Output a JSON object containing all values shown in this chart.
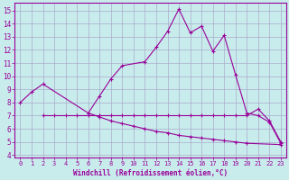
{
  "xlabel": "Windchill (Refroidissement éolien,°C)",
  "background_color": "#c8ecec",
  "grid_color": "#aaaacc",
  "line_color": "#990099",
  "xlim": [
    -0.5,
    23.5
  ],
  "ylim": [
    3.8,
    15.6
  ],
  "yticks": [
    4,
    5,
    6,
    7,
    8,
    9,
    10,
    11,
    12,
    13,
    14,
    15
  ],
  "xticks": [
    0,
    1,
    2,
    3,
    4,
    5,
    6,
    7,
    8,
    9,
    10,
    11,
    12,
    13,
    14,
    15,
    16,
    17,
    18,
    19,
    20,
    21,
    22,
    23
  ],
  "series1_x": [
    0,
    1,
    2,
    6,
    7,
    8,
    9,
    11,
    12,
    13,
    14,
    15,
    16,
    17,
    18,
    19,
    20,
    21,
    22,
    23
  ],
  "series1_y": [
    8.0,
    8.8,
    9.4,
    7.2,
    8.5,
    9.8,
    10.8,
    11.1,
    12.2,
    13.4,
    15.1,
    13.3,
    13.8,
    11.9,
    13.1,
    10.1,
    7.2,
    7.0,
    6.5,
    4.9
  ],
  "series2_x": [
    2,
    3,
    4,
    5,
    6,
    7,
    8,
    9,
    10,
    11,
    12,
    13,
    14,
    15,
    16,
    17,
    18,
    19,
    20,
    21,
    22,
    23
  ],
  "series2_y": [
    7.0,
    7.0,
    7.0,
    7.0,
    7.0,
    7.0,
    7.0,
    7.0,
    7.0,
    7.0,
    7.0,
    7.0,
    7.0,
    7.0,
    7.0,
    7.0,
    7.0,
    7.0,
    7.0,
    7.5,
    6.6,
    5.0
  ],
  "series3_x": [
    6,
    7,
    8,
    9,
    10,
    11,
    12,
    13,
    14,
    15,
    16,
    17,
    18,
    19,
    20,
    23
  ],
  "series3_y": [
    7.2,
    6.9,
    6.6,
    6.4,
    6.2,
    6.0,
    5.8,
    5.7,
    5.5,
    5.4,
    5.3,
    5.2,
    5.1,
    5.0,
    4.9,
    4.8
  ]
}
